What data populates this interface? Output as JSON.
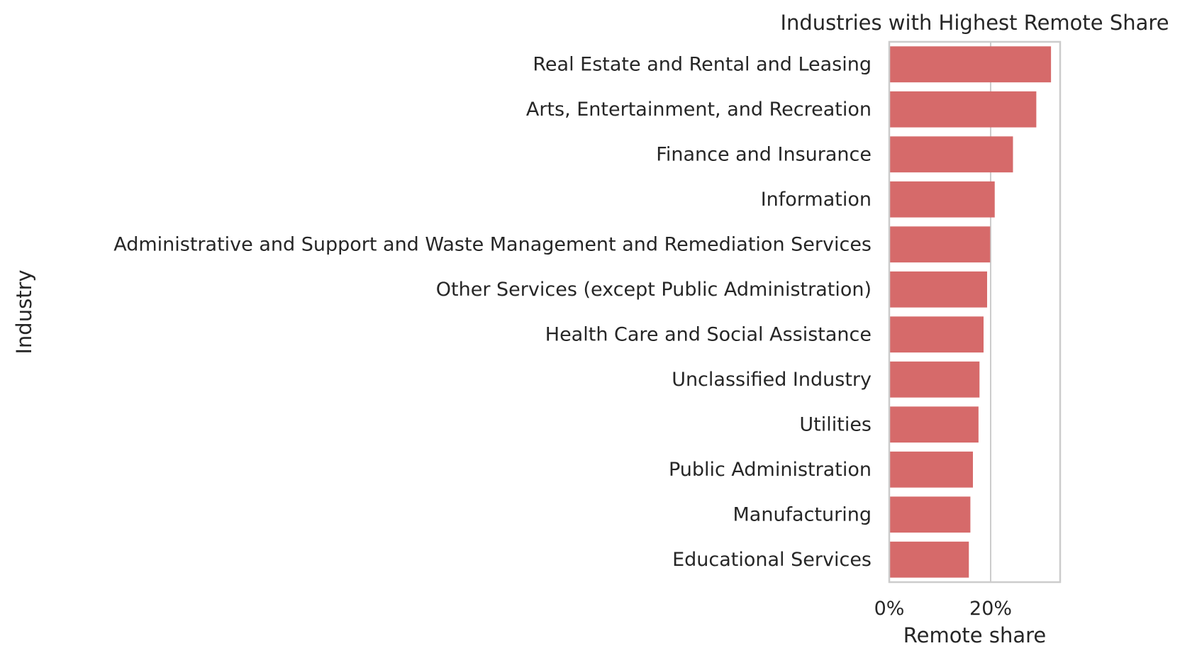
{
  "chart_data": {
    "type": "bar",
    "orientation": "horizontal",
    "title": "Industries with Highest Remote Share",
    "xlabel": "Remote share",
    "ylabel": "Industry",
    "categories": [
      "Real Estate and Rental and Leasing",
      "Arts, Entertainment, and Recreation",
      "Finance and Insurance",
      "Information",
      "Administrative and Support and Waste Management and Remediation Services",
      "Other Services (except Public Administration)",
      "Health Care and Social Assistance",
      "Unclassified Industry",
      "Utilities",
      "Public Administration",
      "Manufacturing",
      "Educational Services"
    ],
    "values": [
      0.319,
      0.29,
      0.244,
      0.208,
      0.199,
      0.193,
      0.186,
      0.178,
      0.176,
      0.165,
      0.16,
      0.157
    ],
    "xlim": [
      0,
      0.337
    ],
    "xticks": [
      0,
      0.2
    ],
    "xtick_labels": [
      "0%",
      "20%"
    ],
    "grid": true,
    "bar_color": "#d66a6a",
    "grid_color": "#cccccc",
    "axes_edge_color": "#cccccc"
  }
}
